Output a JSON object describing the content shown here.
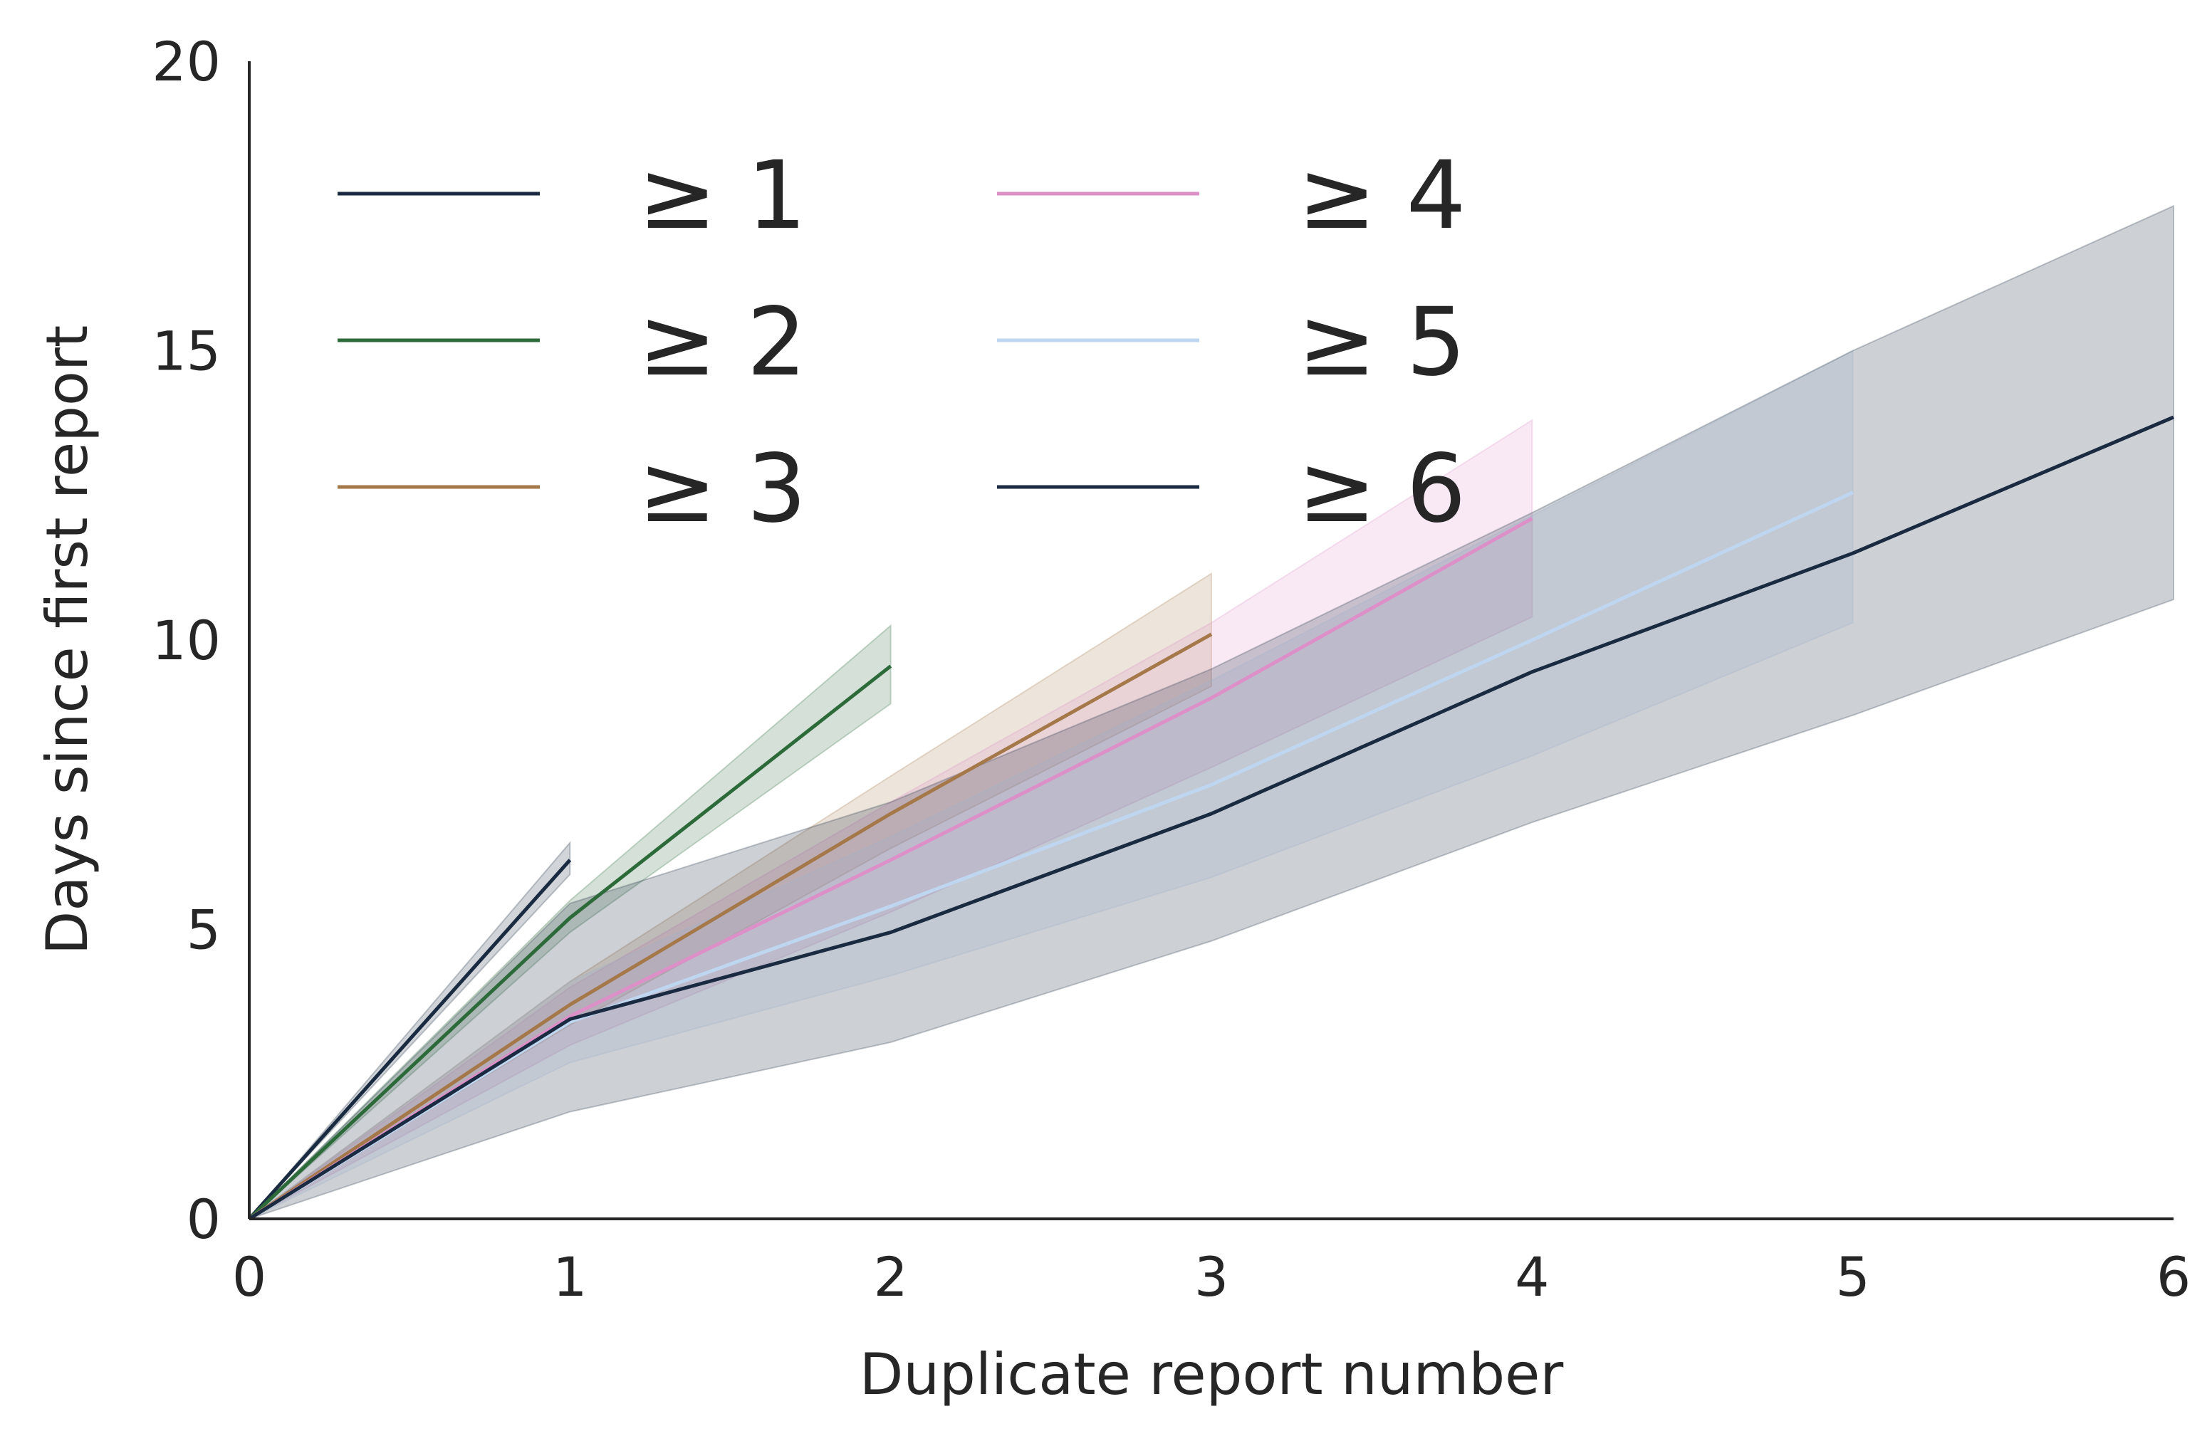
{
  "chart_data": {
    "type": "line",
    "title": "",
    "xlabel": "Duplicate report number",
    "ylabel": "Days since first report",
    "xlim": [
      0,
      6
    ],
    "ylim": [
      0,
      20
    ],
    "x_ticks": [
      "0",
      "1",
      "2",
      "3",
      "4",
      "5",
      "6"
    ],
    "y_ticks": [
      "0",
      "5",
      "10",
      "15",
      "20"
    ],
    "grid": false,
    "legend": {
      "placement": "top-left",
      "columns": 2
    },
    "series": [
      {
        "name": "≥ 1",
        "color": "#1a2a40",
        "x": [
          0,
          1
        ],
        "y": [
          0,
          6.2
        ],
        "lower": [
          0,
          5.95
        ],
        "upper": [
          0,
          6.5
        ]
      },
      {
        "name": "≥ 2",
        "color": "#2d6a3a",
        "x": [
          0,
          1,
          2
        ],
        "y": [
          0,
          5.2,
          9.55
        ],
        "lower": [
          0,
          4.95,
          8.9
        ],
        "upper": [
          0,
          5.5,
          10.25
        ]
      },
      {
        "name": "≥ 3",
        "color": "#a5784a",
        "x": [
          0,
          1,
          2,
          3
        ],
        "y": [
          0,
          3.7,
          7.0,
          10.1
        ],
        "lower": [
          0,
          3.35,
          6.4,
          9.2
        ],
        "upper": [
          0,
          4.1,
          7.65,
          11.15
        ]
      },
      {
        "name": "≥ 4",
        "color": "#dd8fc8",
        "x": [
          0,
          1,
          2,
          3,
          4
        ],
        "y": [
          0,
          3.5,
          6.2,
          9.0,
          12.1
        ],
        "lower": [
          0,
          3.0,
          5.3,
          7.8,
          10.4
        ],
        "upper": [
          0,
          4.0,
          7.2,
          10.3,
          13.8
        ]
      },
      {
        "name": "≥ 5",
        "color": "#bfd6f0",
        "x": [
          0,
          1,
          2,
          3,
          4,
          5
        ],
        "y": [
          0,
          3.4,
          5.4,
          7.5,
          10.0,
          12.55
        ],
        "lower": [
          0,
          2.7,
          4.2,
          5.9,
          8.0,
          10.3
        ],
        "upper": [
          0,
          4.1,
          6.6,
          9.3,
          12.15,
          15.0
        ]
      },
      {
        "name": "≥ 6",
        "color": "#1a2a40",
        "x": [
          0,
          1,
          2,
          3,
          4,
          5,
          6
        ],
        "y": [
          0,
          3.45,
          4.95,
          7.0,
          9.45,
          11.5,
          13.85
        ],
        "lower": [
          0,
          1.85,
          3.05,
          4.8,
          6.85,
          8.7,
          10.7
        ],
        "upper": [
          0,
          5.45,
          7.2,
          9.5,
          12.2,
          15.0,
          17.5
        ]
      }
    ]
  }
}
